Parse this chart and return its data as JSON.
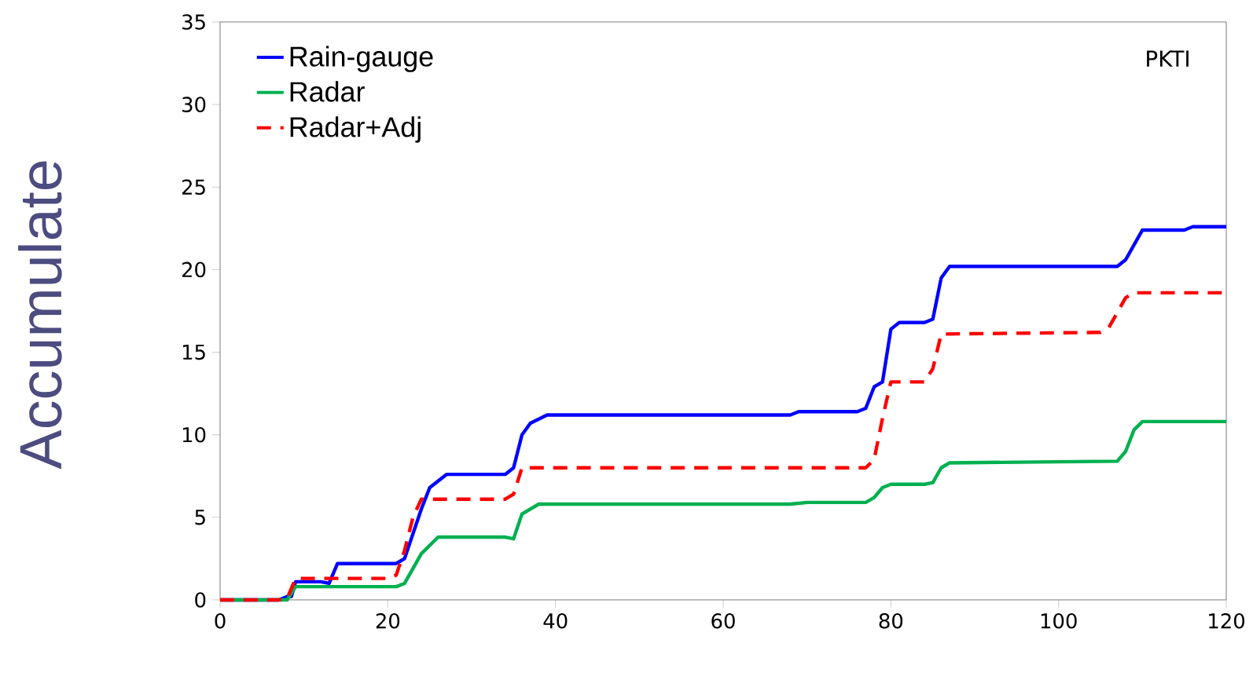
{
  "chart_data": {
    "type": "line",
    "ylabel": "Accumulate",
    "annotations": [
      "PKTI"
    ],
    "xlim": [
      0,
      120
    ],
    "ylim": [
      0,
      35
    ],
    "xticks": [
      0,
      20,
      40,
      60,
      80,
      100,
      120
    ],
    "yticks": [
      0,
      5,
      10,
      15,
      20,
      25,
      30,
      35
    ],
    "legend": "top left",
    "grid": false,
    "marker": "none",
    "series": [
      {
        "name": "Rain-gauge",
        "color": "#0000ff",
        "line_style": "solid",
        "x": [
          0,
          7,
          8,
          8.5,
          9,
          12,
          13,
          14,
          21,
          22,
          24,
          25,
          27,
          34,
          35,
          36,
          37,
          39,
          68,
          69,
          76,
          77,
          78,
          79,
          80,
          81,
          84,
          85,
          86,
          87,
          107,
          108,
          110,
          115,
          116,
          120
        ],
        "values": [
          0,
          0,
          0.2,
          0.2,
          1.1,
          1.1,
          1.0,
          2.2,
          2.2,
          2.5,
          5.5,
          6.8,
          7.6,
          7.6,
          8.0,
          10,
          10.7,
          11.2,
          11.2,
          11.4,
          11.4,
          11.6,
          12.9,
          13.2,
          16.4,
          16.8,
          16.8,
          17.0,
          19.5,
          20.2,
          20.2,
          20.6,
          22.4,
          22.4,
          22.6,
          22.6
        ]
      },
      {
        "name": "Radar",
        "color": "#00b050",
        "line_style": "solid",
        "x": [
          0,
          8,
          9,
          21,
          22,
          24,
          26,
          34,
          35,
          36,
          38,
          68,
          70,
          77,
          78,
          79,
          80,
          84,
          85,
          86,
          87,
          107,
          108,
          109,
          110,
          120
        ],
        "values": [
          0,
          0,
          0.8,
          0.8,
          1.0,
          2.8,
          3.8,
          3.8,
          3.7,
          5.2,
          5.8,
          5.8,
          5.9,
          5.9,
          6.2,
          6.8,
          7.0,
          7.0,
          7.1,
          8.0,
          8.3,
          8.4,
          9,
          10.3,
          10.8,
          10.8
        ]
      },
      {
        "name": "Radar+Adj",
        "color": "#ff0000",
        "line_style": "dashed",
        "x": [
          0,
          7,
          8,
          9,
          20,
          21,
          22,
          23,
          24,
          34,
          35,
          36,
          77,
          78,
          79,
          80,
          84,
          85,
          86,
          105,
          106,
          108,
          109,
          120
        ],
        "values": [
          0,
          0,
          0.1,
          1.3,
          1.3,
          1.5,
          3,
          5,
          6.1,
          6.1,
          6.4,
          8.0,
          8.0,
          8.5,
          11,
          13.2,
          13.2,
          14,
          16.1,
          16.2,
          16.5,
          18.3,
          18.6,
          18.6
        ]
      }
    ]
  }
}
